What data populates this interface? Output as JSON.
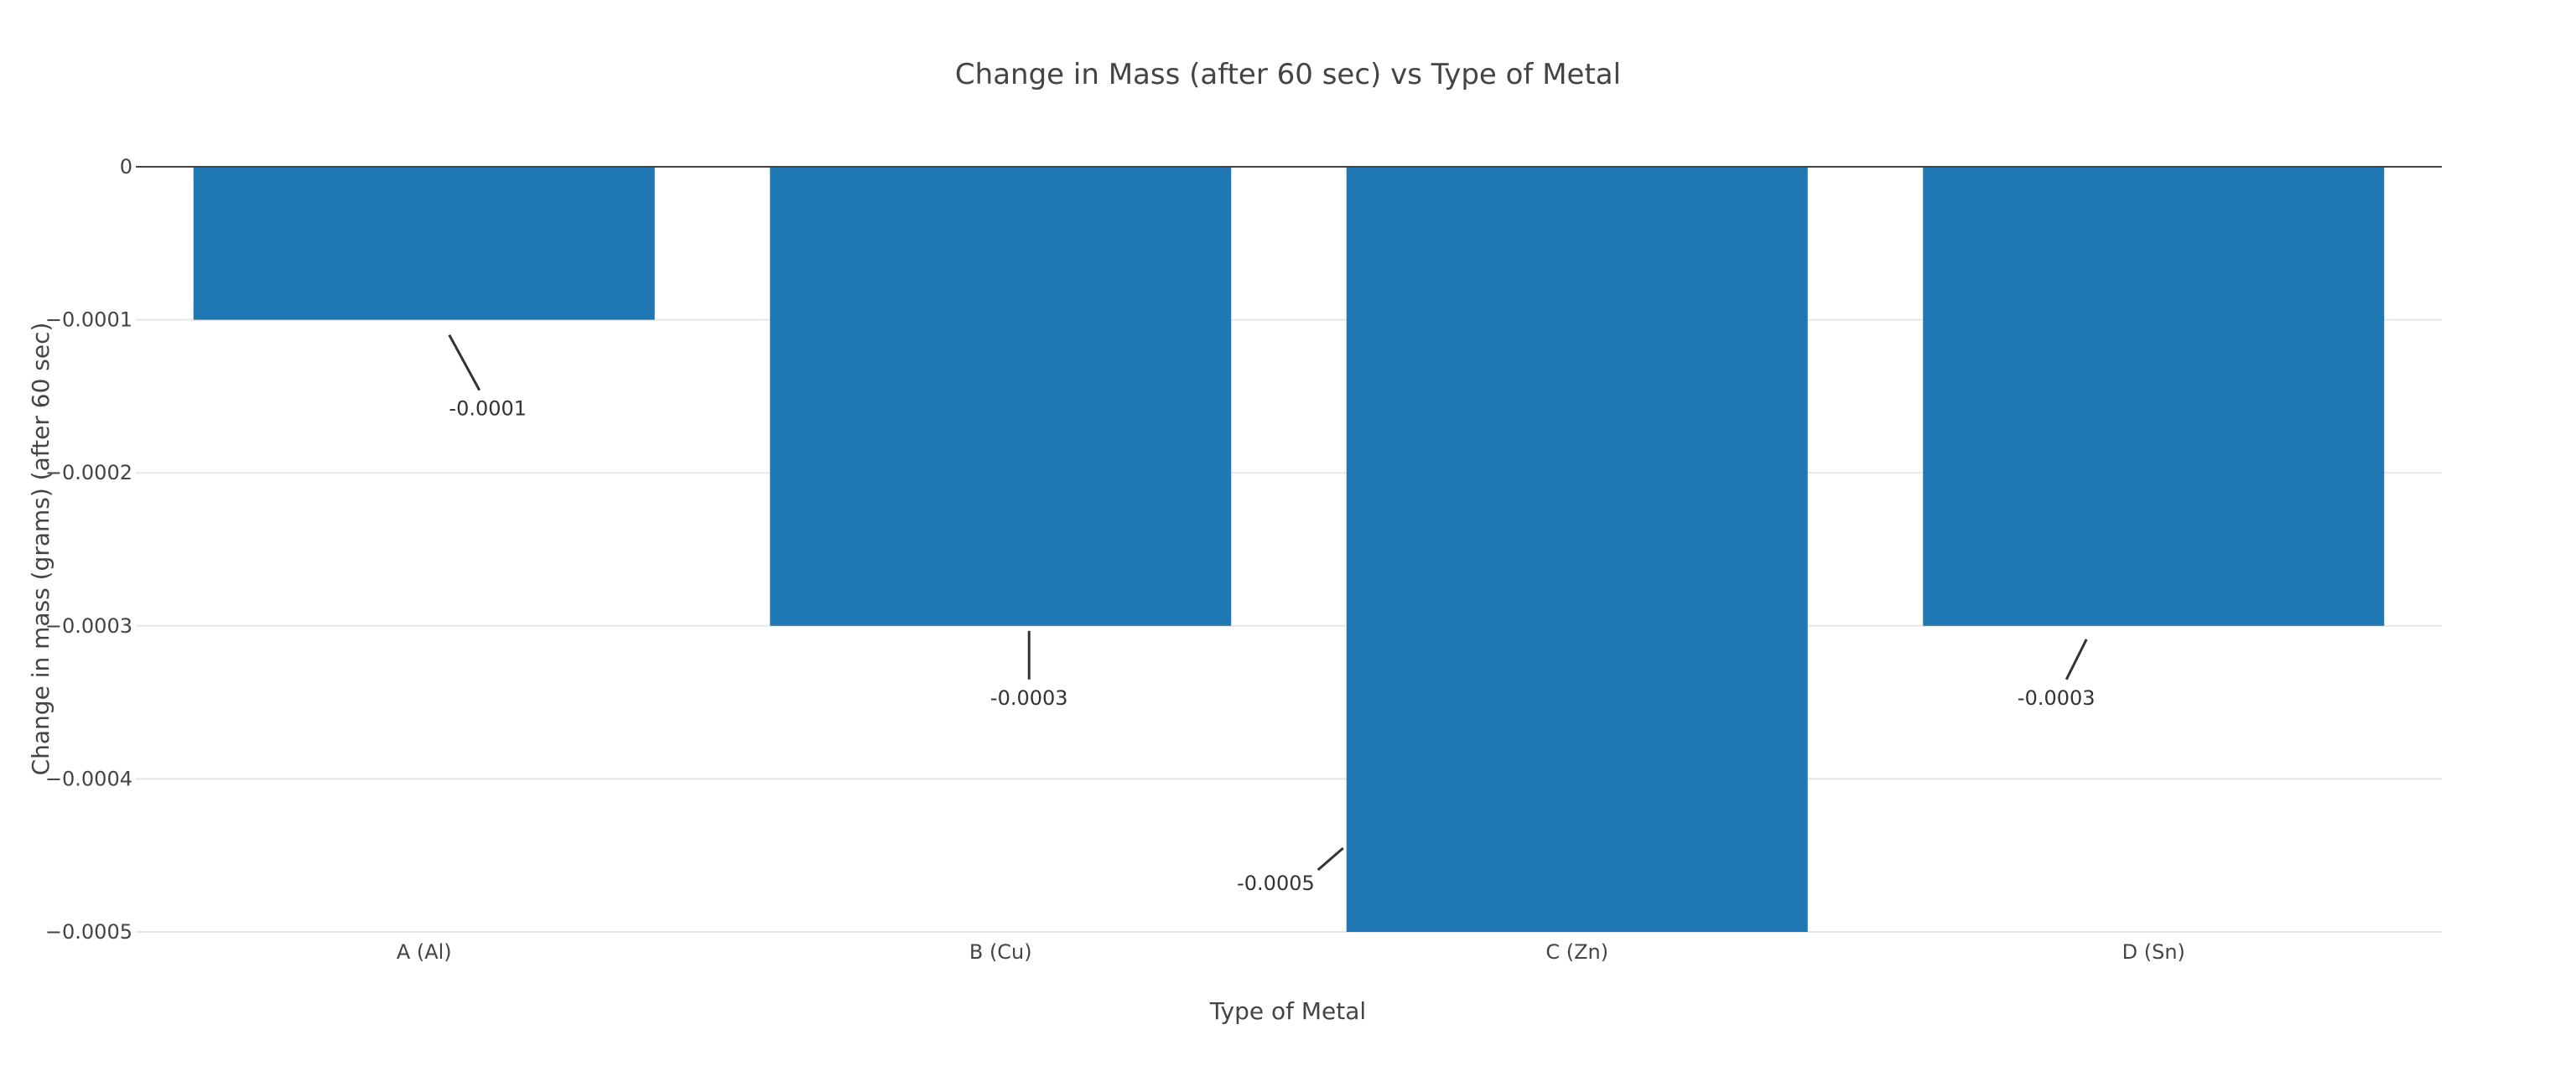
{
  "chart_data": {
    "type": "bar",
    "title": "Change in Mass (after 60 sec) vs Type of Metal",
    "xlabel": "Type of Metal",
    "ylabel": "Change in mass (grams) (after 60 sec)",
    "categories": [
      "A (Al)",
      "B (Cu)",
      "C (Zn)",
      "D (Sn)"
    ],
    "values": [
      -0.0001,
      -0.0003,
      -0.0005,
      -0.0003
    ],
    "data_labels": [
      "-0.0001",
      "-0.0003",
      "-0.0005",
      "-0.0003"
    ],
    "ylim": [
      -0.0005,
      0
    ],
    "yticks": [
      0,
      -0.0001,
      -0.0002,
      -0.0003,
      -0.0004,
      -0.0005
    ],
    "ytick_labels": [
      "0",
      "−0.0001",
      "−0.0002",
      "−0.0003",
      "−0.0004",
      "−0.0005"
    ],
    "grid": true,
    "bar_color": "#1f77b4"
  }
}
